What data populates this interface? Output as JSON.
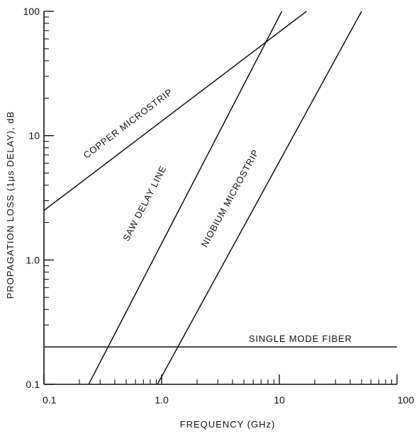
{
  "chart_data": {
    "type": "line",
    "title": "",
    "xlabel": "FREQUENCY (GHz)",
    "ylabel": "PROPAGATION LOSS (1μs DELAY), dB",
    "x_scale": "log",
    "y_scale": "log",
    "xlim": [
      0.1,
      100
    ],
    "ylim": [
      0.1,
      100
    ],
    "x_tick_labels": [
      "0.1",
      "1.0",
      "10",
      "100"
    ],
    "x_tick_values": [
      0.1,
      1,
      10,
      100
    ],
    "y_tick_labels": [
      "0.1",
      "1.0",
      "10",
      "100"
    ],
    "y_tick_values": [
      0.1,
      1,
      10,
      100
    ],
    "grid": false,
    "legend": "none",
    "series": [
      {
        "name": "COPPER MICROSTRIP",
        "x": [
          0.1,
          17
        ],
        "y": [
          2.5,
          100
        ]
      },
      {
        "name": "SAW DELAY LINE",
        "x": [
          0.24,
          10.5
        ],
        "y": [
          0.1,
          100
        ]
      },
      {
        "name": "NIOBIUM MICROSTRIP",
        "x": [
          0.92,
          50
        ],
        "y": [
          0.1,
          100
        ]
      },
      {
        "name": "SINGLE MODE FIBER",
        "x": [
          0.1,
          100
        ],
        "y": [
          0.2,
          0.2
        ]
      }
    ],
    "annotations": [
      {
        "series": "COPPER MICROSTRIP",
        "text": "COPPER MICROSTRIP",
        "at_x": 0.23,
        "at_y": 6.5
      },
      {
        "series": "SAW DELAY LINE",
        "text": "SAW DELAY LINE",
        "at_x": 0.52,
        "at_y": 1.4
      },
      {
        "series": "NIOBIUM MICROSTRIP",
        "text": "NIOBIUM MICROSTRIP",
        "at_x": 2.4,
        "at_y": 1.25
      },
      {
        "series": "SINGLE MODE FIBER",
        "text": "SINGLE MODE FIBER",
        "at_x": 5.5,
        "at_y": 0.22
      }
    ]
  }
}
